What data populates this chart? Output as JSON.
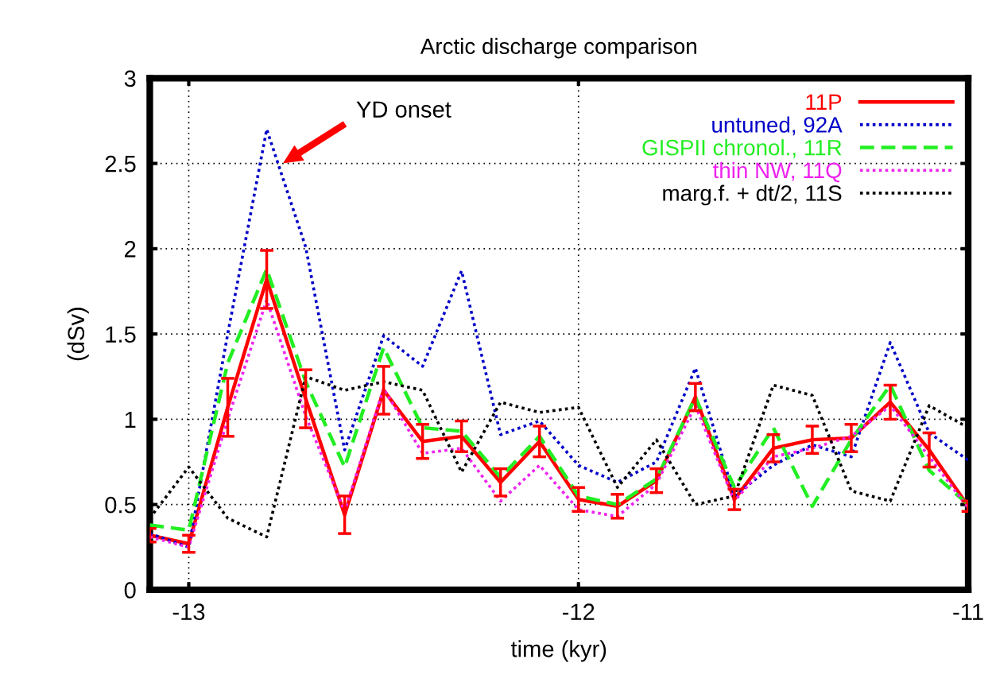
{
  "chart_data": {
    "type": "line",
    "title": "Arctic discharge comparison",
    "xlabel": "time (kyr)",
    "ylabel": "(dSv)",
    "x": [
      -13.1,
      -13.0,
      -12.9,
      -12.8,
      -12.7,
      -12.6,
      -12.5,
      -12.4,
      -12.3,
      -12.2,
      -12.1,
      -12.0,
      -11.9,
      -11.8,
      -11.7,
      -11.6,
      -11.5,
      -11.4,
      -11.3,
      -11.2,
      -11.1,
      -11.0
    ],
    "series": [
      {
        "name": "11P",
        "color": "#ff0000",
        "line_style": "solid",
        "values": [
          0.32,
          0.27,
          1.07,
          1.82,
          1.12,
          0.44,
          1.17,
          0.87,
          0.9,
          0.63,
          0.87,
          0.53,
          0.49,
          0.64,
          1.13,
          0.53,
          0.83,
          0.88,
          0.89,
          1.1,
          0.82,
          0.49
        ],
        "errors": [
          0.04,
          0.05,
          0.17,
          0.17,
          0.17,
          0.11,
          0.14,
          0.1,
          0.09,
          0.08,
          0.09,
          0.07,
          0.07,
          0.07,
          0.08,
          0.06,
          0.08,
          0.08,
          0.08,
          0.1,
          0.1,
          0.03
        ]
      },
      {
        "name": "untuned, 92A",
        "color": "#0000c8",
        "line_style": "dotted",
        "values": [
          0.33,
          0.25,
          1.5,
          2.7,
          2.01,
          0.82,
          1.49,
          1.31,
          1.87,
          0.91,
          0.99,
          0.73,
          0.63,
          0.75,
          1.3,
          0.55,
          0.73,
          0.85,
          0.78,
          1.45,
          0.92,
          0.76
        ]
      },
      {
        "name": "GISPII chronol., 11R",
        "color": "#22ee22",
        "line_style": "dashed",
        "values": [
          0.38,
          0.35,
          1.33,
          1.88,
          1.22,
          0.72,
          1.42,
          0.95,
          0.93,
          0.66,
          0.9,
          0.55,
          0.5,
          0.65,
          1.13,
          0.6,
          0.95,
          0.49,
          0.88,
          1.2,
          0.7,
          0.5
        ]
      },
      {
        "name": "thin NW, 11Q",
        "color": "#ee22ee",
        "line_style": "dotted",
        "values": [
          0.31,
          0.25,
          1.0,
          1.7,
          1.02,
          0.46,
          1.18,
          0.8,
          0.83,
          0.52,
          0.73,
          0.47,
          0.43,
          0.62,
          1.08,
          0.52,
          0.78,
          0.83,
          0.9,
          1.08,
          0.78,
          0.48
        ]
      },
      {
        "name": "marg.f. + dt/2, 11S",
        "color": "#000000",
        "line_style": "dotted",
        "values": [
          0.42,
          0.72,
          0.42,
          0.31,
          1.25,
          1.17,
          1.22,
          1.17,
          0.69,
          1.1,
          1.04,
          1.07,
          0.6,
          0.88,
          0.5,
          0.55,
          1.2,
          1.14,
          0.58,
          0.52,
          1.08,
          0.95
        ]
      }
    ],
    "xlim": [
      -13.1,
      -11.0
    ],
    "xticks": [
      -13,
      -12,
      -11
    ],
    "ylim": [
      0,
      3
    ],
    "yticks": [
      0,
      0.5,
      1,
      1.5,
      2,
      2.5,
      3
    ],
    "grid": true,
    "legend": "top right",
    "annotations": [
      "YD onset"
    ]
  }
}
